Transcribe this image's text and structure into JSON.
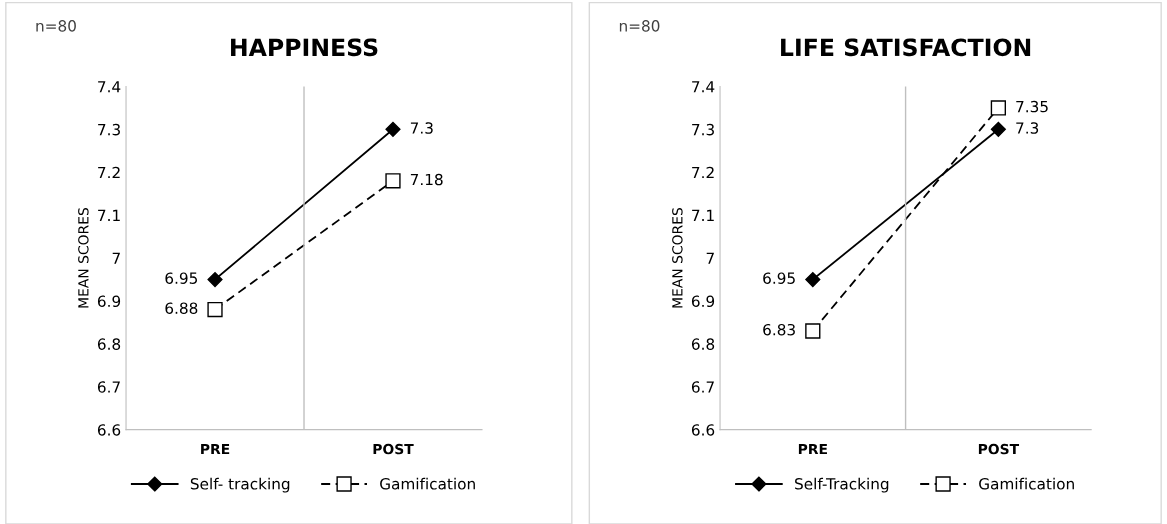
{
  "chart_data": [
    {
      "type": "line",
      "title": "HAPPINESS",
      "ylabel": "MEAN SCORES",
      "annotations": [
        "n=80"
      ],
      "categories": [
        "PRE",
        "POST"
      ],
      "ylim": [
        6.6,
        7.4
      ],
      "yticks": [
        6.6,
        6.7,
        6.8,
        6.9,
        7,
        7.1,
        7.2,
        7.3,
        7.4
      ],
      "grid": "x",
      "legend": "bottom",
      "data_labels": true,
      "series": [
        {
          "name": "Self- tracking",
          "color": "#000000",
          "values": [
            6.95,
            7.3
          ],
          "marker": "diamond",
          "line_style": "solid"
        },
        {
          "name": "Gamification",
          "color": "#000000",
          "values": [
            6.88,
            7.18
          ],
          "marker": "square",
          "line_style": "dashed"
        }
      ]
    },
    {
      "type": "line",
      "title": "LIFE SATISFACTION",
      "ylabel": "MEAN SCORES",
      "annotations": [
        "n=80"
      ],
      "categories": [
        "PRE",
        "POST"
      ],
      "ylim": [
        6.6,
        7.4
      ],
      "yticks": [
        6.6,
        6.7,
        6.8,
        6.9,
        7,
        7.1,
        7.2,
        7.3,
        7.4
      ],
      "grid": "x",
      "legend": "bottom",
      "data_labels": true,
      "series": [
        {
          "name": "Self-Tracking",
          "color": "#000000",
          "values": [
            6.95,
            7.3
          ],
          "marker": "diamond",
          "line_style": "solid"
        },
        {
          "name": "Gamification",
          "color": "#000000",
          "values": [
            6.83,
            7.35
          ],
          "marker": "square",
          "line_style": "dashed"
        }
      ]
    }
  ]
}
